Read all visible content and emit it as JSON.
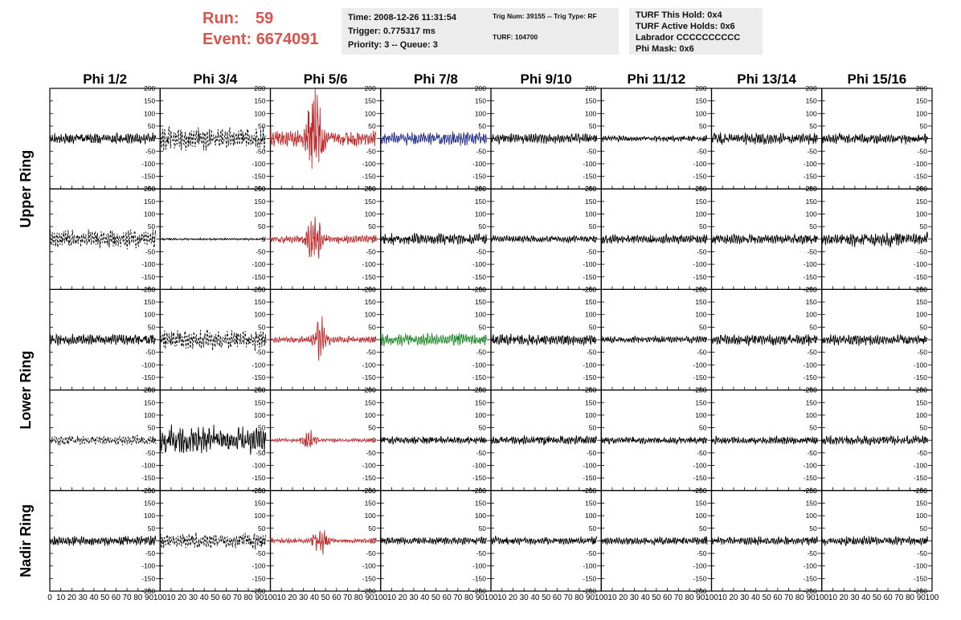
{
  "header": {
    "run_label": "Run:",
    "run_value": "59",
    "event_label": "Event:",
    "event_value": "6674091"
  },
  "info_boxes": [
    {
      "lines": [
        "Time: 2008-12-26 11:31:54",
        "Trigger: 0.775317 ms",
        "Priority: 3 -- Queue: 3"
      ]
    },
    {
      "lines": [
        "Trig Num: 39155 -- Trig Type: RF",
        "",
        "TURF: 104700"
      ]
    },
    {
      "lines": [
        "TURF This Hold: 0x4",
        "TURF Active Holds: 0x6",
        "Labrador CCCCCCCCCC",
        "Phi Mask: 0x6"
      ]
    }
  ],
  "colors": {
    "default": "#000000",
    "highlight_red": "#c0282b",
    "highlight_blue": "#1f2a8a",
    "highlight_green": "#1f8a2a",
    "header_red": "#d9534f",
    "info_bg": "#ececec"
  },
  "chart_data": {
    "type": "line",
    "columns": [
      "Phi 1/2",
      "Phi 3/4",
      "Phi 5/6",
      "Phi 7/8",
      "Phi 9/10",
      "Phi 11/12",
      "Phi 13/14",
      "Phi 15/16"
    ],
    "ring_labels": [
      {
        "text": "Upper Ring",
        "rows": [
          0,
          1
        ]
      },
      {
        "text": "Lower Ring",
        "rows": [
          2,
          3
        ]
      },
      {
        "text": "Nadir Ring",
        "rows": [
          4,
          4
        ]
      }
    ],
    "ylim": [
      -200,
      200
    ],
    "yticks": [
      -200,
      -150,
      -100,
      -50,
      0,
      50,
      100,
      150,
      200
    ],
    "xlim": [
      0,
      100
    ],
    "xticks": [
      0,
      10,
      20,
      30,
      40,
      50,
      60,
      70,
      80,
      90,
      100
    ],
    "x_range_plotted": [
      0,
      96
    ],
    "grid": false,
    "panels": [
      [
        {
          "amp": 22,
          "style": "solid",
          "color": "default"
        },
        {
          "amp": 45,
          "style": "dashed",
          "color": "default"
        },
        {
          "amp": 190,
          "style": "solid",
          "color": "highlight_red",
          "burst_center": 40
        },
        {
          "amp": 25,
          "style": "solid",
          "color": "highlight_blue"
        },
        {
          "amp": 20,
          "style": "solid",
          "color": "default"
        },
        {
          "amp": 12,
          "style": "solid",
          "color": "default"
        },
        {
          "amp": 22,
          "style": "solid",
          "color": "default"
        },
        {
          "amp": 20,
          "style": "solid",
          "color": "default"
        }
      ],
      [
        {
          "amp": 38,
          "style": "dashed",
          "color": "default"
        },
        {
          "amp": 4,
          "style": "solid",
          "color": "default"
        },
        {
          "amp": 90,
          "style": "solid",
          "color": "highlight_red",
          "burst_center": 40
        },
        {
          "amp": 22,
          "style": "solid",
          "color": "default"
        },
        {
          "amp": 14,
          "style": "solid",
          "color": "default"
        },
        {
          "amp": 18,
          "style": "solid",
          "color": "default"
        },
        {
          "amp": 20,
          "style": "solid",
          "color": "default"
        },
        {
          "amp": 28,
          "style": "solid",
          "color": "default"
        }
      ],
      [
        {
          "amp": 22,
          "style": "solid",
          "color": "default"
        },
        {
          "amp": 38,
          "style": "dashed",
          "color": "default"
        },
        {
          "amp": 75,
          "style": "solid",
          "color": "highlight_red",
          "burst_center": 45
        },
        {
          "amp": 25,
          "style": "solid",
          "color": "highlight_green"
        },
        {
          "amp": 22,
          "style": "solid",
          "color": "default"
        },
        {
          "amp": 14,
          "style": "solid",
          "color": "default"
        },
        {
          "amp": 22,
          "style": "solid",
          "color": "default"
        },
        {
          "amp": 22,
          "style": "solid",
          "color": "default"
        }
      ],
      [
        {
          "amp": 20,
          "style": "dashed",
          "color": "default"
        },
        {
          "amp": 55,
          "style": "solid",
          "color": "default"
        },
        {
          "amp": 40,
          "style": "solid",
          "color": "highlight_red",
          "burst_center": 35
        },
        {
          "amp": 16,
          "style": "solid",
          "color": "default"
        },
        {
          "amp": 18,
          "style": "solid",
          "color": "default"
        },
        {
          "amp": 14,
          "style": "solid",
          "color": "default"
        },
        {
          "amp": 16,
          "style": "solid",
          "color": "default"
        },
        {
          "amp": 18,
          "style": "solid",
          "color": "default"
        }
      ],
      [
        {
          "amp": 20,
          "style": "solid",
          "color": "default"
        },
        {
          "amp": 32,
          "style": "dashed",
          "color": "default"
        },
        {
          "amp": 55,
          "style": "solid",
          "color": "highlight_red",
          "burst_center": 45
        },
        {
          "amp": 15,
          "style": "solid",
          "color": "default"
        },
        {
          "amp": 16,
          "style": "solid",
          "color": "default"
        },
        {
          "amp": 16,
          "style": "solid",
          "color": "default"
        },
        {
          "amp": 16,
          "style": "solid",
          "color": "default"
        },
        {
          "amp": 18,
          "style": "solid",
          "color": "default"
        }
      ]
    ]
  }
}
